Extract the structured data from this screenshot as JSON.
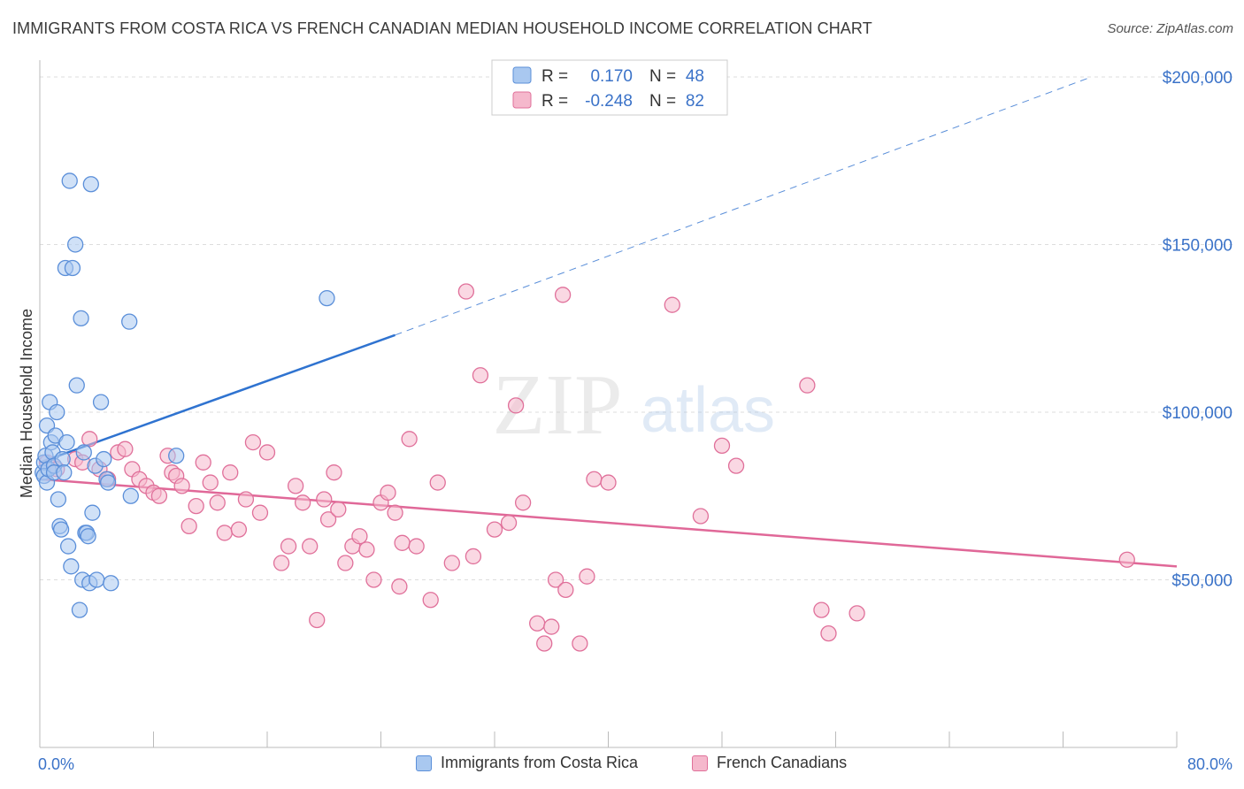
{
  "header": {
    "title": "IMMIGRANTS FROM COSTA RICA VS FRENCH CANADIAN MEDIAN HOUSEHOLD INCOME CORRELATION CHART",
    "source": "Source: ZipAtlas.com"
  },
  "watermark": {
    "zip": "ZIP",
    "atlas": "atlas"
  },
  "legend_top": [
    {
      "r_label": "R =",
      "r_value": "0.170",
      "n_label": "N =",
      "n_value": "48"
    },
    {
      "r_label": "R =",
      "r_value": "-0.248",
      "n_label": "N =",
      "n_value": "82"
    }
  ],
  "colors": {
    "blue": "#5b8fd9",
    "blue_fill": "#a9c8f0",
    "blue_line": "#2f73d0",
    "pink": "#e0709a",
    "pink_fill": "#f5b8cc",
    "pink_line": "#e06898",
    "tick_text": "#3a72c8",
    "grid": "#dddddd"
  },
  "chart_data": {
    "type": "scatter",
    "title": "IMMIGRANTS FROM COSTA RICA VS FRENCH CANADIAN MEDIAN HOUSEHOLD INCOME CORRELATION CHART",
    "xlabel": "",
    "ylabel": "Median Household Income",
    "xlim": [
      0,
      80
    ],
    "ylim": [
      0,
      205000
    ],
    "x_tick_labels": [
      "0.0%",
      "80.0%"
    ],
    "y_ticks": [
      50000,
      100000,
      150000,
      200000
    ],
    "y_tick_labels": [
      "$50,000",
      "$100,000",
      "$150,000",
      "$200,000"
    ],
    "grid": true,
    "legend_position": "bottom",
    "series": [
      {
        "name": "Immigrants from Costa Rica",
        "color": "#5b8fd9",
        "r": 0.17,
        "n": 48,
        "trend": {
          "x": [
            0,
            25
          ],
          "y": [
            85000,
            123000
          ],
          "dashed_to": [
            74,
            200000
          ]
        },
        "x": [
          0.2,
          0.3,
          0.3,
          0.4,
          0.5,
          0.5,
          0.6,
          0.7,
          0.8,
          0.9,
          1.0,
          1.0,
          1.1,
          1.2,
          1.3,
          1.4,
          1.5,
          1.6,
          1.7,
          1.8,
          1.9,
          2.0,
          2.1,
          2.2,
          2.3,
          2.5,
          2.6,
          2.8,
          2.9,
          3.0,
          3.1,
          3.2,
          3.3,
          3.4,
          3.5,
          3.6,
          3.7,
          3.9,
          4.0,
          4.3,
          4.5,
          4.7,
          4.8,
          5.0,
          6.3,
          6.4,
          9.6,
          20.2
        ],
        "y": [
          82000,
          85000,
          81000,
          87000,
          96000,
          79000,
          83000,
          103000,
          91000,
          88000,
          84000,
          82000,
          93000,
          100000,
          74000,
          66000,
          65000,
          86000,
          82000,
          143000,
          91000,
          60000,
          169000,
          54000,
          143000,
          150000,
          108000,
          41000,
          128000,
          50000,
          88000,
          64000,
          64000,
          63000,
          49000,
          168000,
          70000,
          84000,
          50000,
          103000,
          86000,
          80000,
          79000,
          49000,
          127000,
          75000,
          87000,
          134000
        ]
      },
      {
        "name": "French Canadians",
        "color": "#e0709a",
        "r": -0.248,
        "n": 82,
        "trend": {
          "x": [
            0,
            80
          ],
          "y": [
            80000,
            54000
          ]
        },
        "x": [
          0.5,
          1.0,
          1.2,
          2.5,
          3.0,
          3.5,
          4.2,
          4.8,
          5.5,
          6.0,
          6.5,
          7.0,
          7.5,
          8.0,
          8.4,
          9.0,
          9.3,
          9.6,
          10.0,
          10.5,
          11.0,
          11.5,
          12.0,
          12.5,
          13.0,
          13.4,
          14.0,
          14.5,
          15.0,
          15.5,
          16.0,
          17.0,
          17.5,
          18.0,
          18.5,
          19.0,
          19.5,
          20.0,
          20.3,
          20.7,
          21.0,
          21.5,
          22.0,
          22.5,
          23.0,
          23.5,
          24.0,
          24.5,
          25.0,
          25.3,
          25.5,
          26.0,
          26.5,
          27.5,
          28.0,
          29.0,
          30.0,
          30.5,
          31.0,
          32.0,
          33.0,
          33.5,
          34.0,
          35.0,
          35.5,
          36.0,
          36.3,
          36.8,
          37.0,
          38.0,
          38.5,
          39.0,
          40.0,
          44.5,
          46.5,
          48.0,
          49.0,
          54.0,
          55.0,
          55.5,
          57.5,
          76.5
        ],
        "y": [
          85000,
          84000,
          83000,
          86000,
          85000,
          92000,
          83000,
          80000,
          88000,
          89000,
          83000,
          80000,
          78000,
          76000,
          75000,
          87000,
          82000,
          81000,
          78000,
          66000,
          72000,
          85000,
          79000,
          73000,
          64000,
          82000,
          65000,
          74000,
          91000,
          70000,
          88000,
          55000,
          60000,
          78000,
          73000,
          60000,
          38000,
          74000,
          68000,
          82000,
          71000,
          55000,
          60000,
          63000,
          59000,
          50000,
          73000,
          76000,
          70000,
          48000,
          61000,
          92000,
          60000,
          44000,
          79000,
          55000,
          136000,
          57000,
          111000,
          65000,
          67000,
          102000,
          73000,
          37000,
          31000,
          36000,
          50000,
          135000,
          47000,
          31000,
          51000,
          80000,
          79000,
          132000,
          69000,
          90000,
          84000,
          108000,
          41000,
          34000,
          40000,
          56000
        ]
      }
    ]
  }
}
